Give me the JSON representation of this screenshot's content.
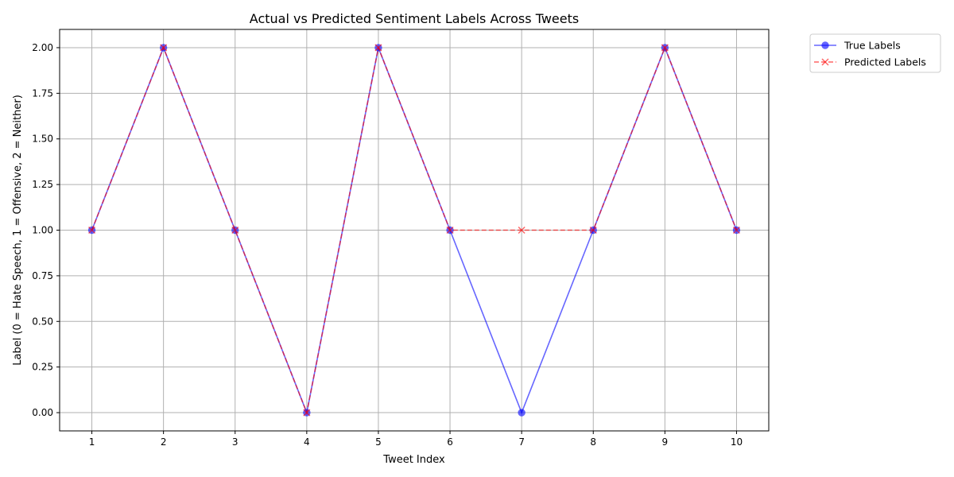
{
  "chart_data": {
    "type": "line",
    "title": "Actual vs Predicted Sentiment Labels Across Tweets",
    "xlabel": "Tweet Index",
    "ylabel": "Label (0 = Hate Speech, 1 = Offensive, 2 = Neither)",
    "x": [
      1,
      2,
      3,
      4,
      5,
      6,
      7,
      8,
      9,
      10
    ],
    "xlim": [
      0.55,
      10.45
    ],
    "ylim": [
      -0.1,
      2.1
    ],
    "x_ticks": [
      "1",
      "2",
      "3",
      "4",
      "5",
      "6",
      "7",
      "8",
      "9",
      "10"
    ],
    "y_ticks": [
      "0.00",
      "0.25",
      "0.50",
      "0.75",
      "1.00",
      "1.25",
      "1.50",
      "1.75",
      "2.00"
    ],
    "grid": true,
    "legend_position": "outside top-right",
    "series": [
      {
        "name": "True Labels",
        "values": [
          1,
          2,
          1,
          0,
          2,
          1,
          0,
          1,
          2,
          1
        ],
        "color": "#0000ff",
        "line_style": "solid",
        "marker": "circle"
      },
      {
        "name": "Predicted Labels",
        "values": [
          1,
          2,
          1,
          0,
          2,
          1,
          1,
          1,
          2,
          1
        ],
        "color": "#ff0000",
        "line_style": "dashed",
        "marker": "x"
      }
    ]
  }
}
